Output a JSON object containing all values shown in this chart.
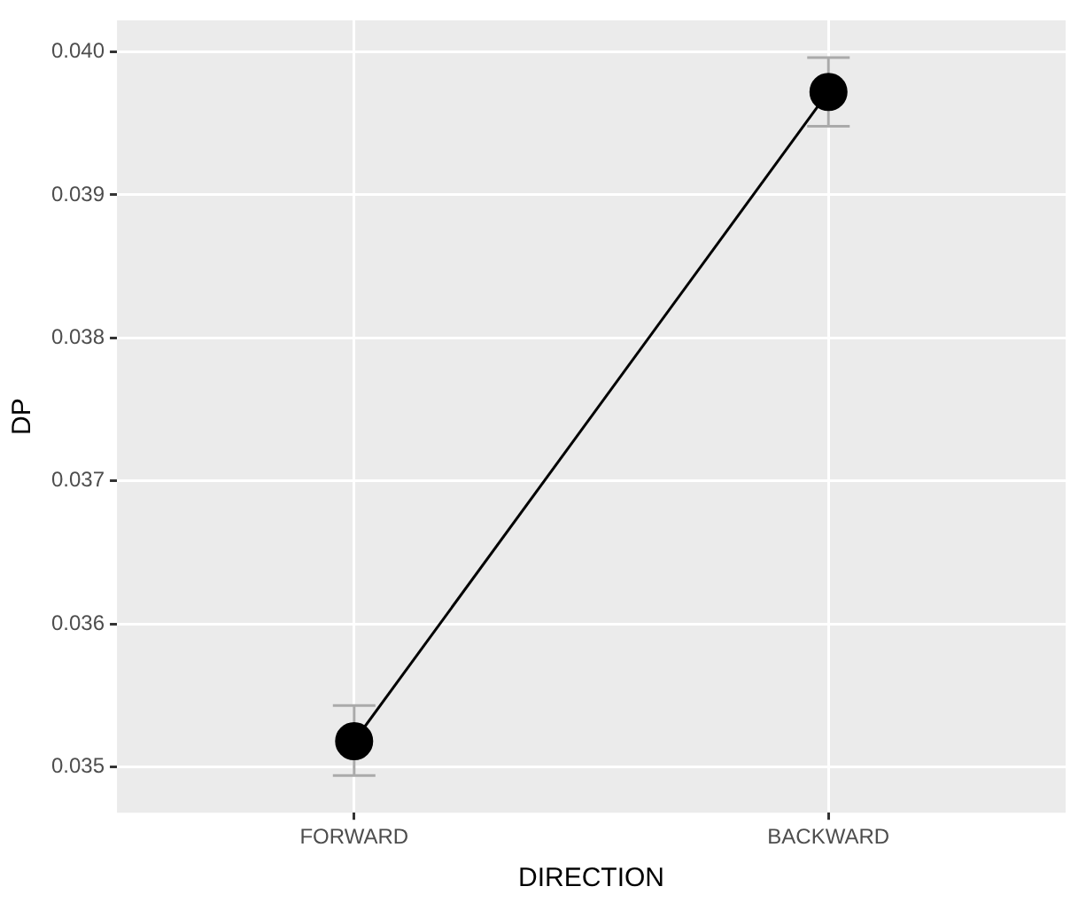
{
  "chart_data": {
    "type": "line",
    "xlabel": "DIRECTION",
    "ylabel": "DP",
    "categories": [
      "FORWARD",
      "BACKWARD"
    ],
    "series": [
      {
        "color": "#000000",
        "values": [
          0.03518,
          0.03972
        ],
        "errors": [
          [
            0.03494,
            0.03543
          ],
          [
            0.03948,
            0.03996
          ]
        ]
      }
    ],
    "ylim": [
      0.03468,
      0.04022
    ],
    "yticks": [
      0.035,
      0.036,
      0.037,
      0.038,
      0.039,
      {
        "value": 0.04,
        "label": "0.040"
      }
    ],
    "grid": true,
    "legend": false,
    "marker": "circle",
    "line_style": "solid"
  }
}
